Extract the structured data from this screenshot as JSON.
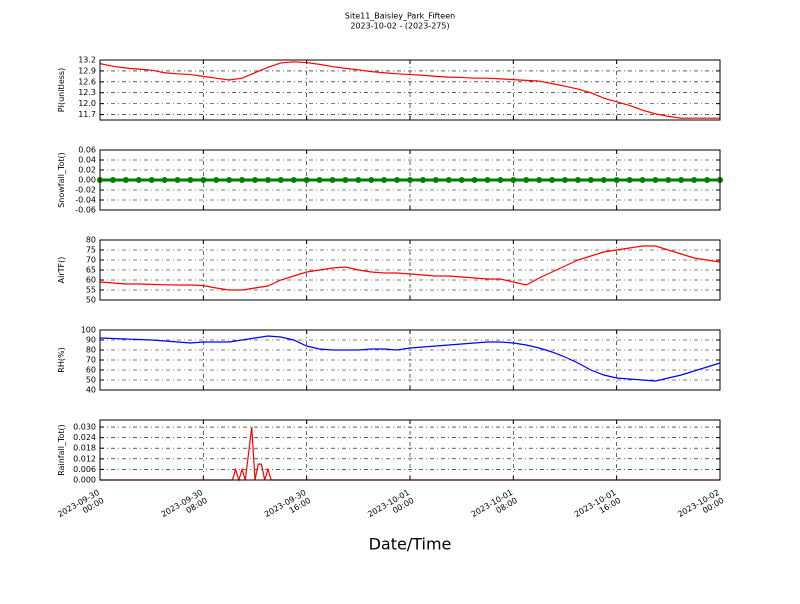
{
  "title": "Site11_Baisley_Park_Fifteen",
  "subtitle": "2023-10-02 - (2023-275)",
  "xlabel": "Date/Time",
  "chart_data": [
    {
      "type": "line",
      "ylabel": "PI(unitless)",
      "color": "#ff0000",
      "grid": true,
      "xlim": [
        "2023-09-30 00:00",
        "2023-10-02 00:00"
      ],
      "ylim": [
        11.55,
        13.2
      ],
      "yticks": [
        11.7,
        {
          "value": 12,
          "label": "12.0"
        },
        12.3,
        12.6,
        12.9,
        13.2
      ],
      "x": [
        "2023-09-30 00:00",
        "2023-09-30 01:00",
        "2023-09-30 02:00",
        "2023-09-30 03:00",
        "2023-09-30 04:00",
        "2023-09-30 05:00",
        "2023-09-30 06:00",
        "2023-09-30 07:00",
        "2023-09-30 08:00",
        "2023-09-30 09:00",
        "2023-09-30 10:00",
        "2023-09-30 11:00",
        "2023-09-30 12:00",
        "2023-09-30 13:00",
        "2023-09-30 14:00",
        "2023-09-30 15:00",
        "2023-09-30 16:00",
        "2023-09-30 17:00",
        "2023-09-30 18:00",
        "2023-09-30 19:00",
        "2023-09-30 20:00",
        "2023-09-30 21:00",
        "2023-09-30 22:00",
        "2023-09-30 23:00",
        "2023-10-01 00:00",
        "2023-10-01 01:00",
        "2023-10-01 02:00",
        "2023-10-01 03:00",
        "2023-10-01 04:00",
        "2023-10-01 05:00",
        "2023-10-01 06:00",
        "2023-10-01 07:00",
        "2023-10-01 08:00",
        "2023-10-01 09:00",
        "2023-10-01 10:00",
        "2023-10-01 11:00",
        "2023-10-01 12:00",
        "2023-10-01 13:00",
        "2023-10-01 14:00",
        "2023-10-01 15:00",
        "2023-10-01 16:00",
        "2023-10-01 17:00",
        "2023-10-01 18:00",
        "2023-10-01 19:00",
        "2023-10-01 20:00",
        "2023-10-01 21:00",
        "2023-10-01 22:00",
        "2023-10-01 23:00",
        "2023-10-02 00:00"
      ],
      "values": [
        13.1,
        13.03,
        12.98,
        12.95,
        12.92,
        12.85,
        12.82,
        12.8,
        12.75,
        12.7,
        12.65,
        12.7,
        12.85,
        13.0,
        13.12,
        13.15,
        13.13,
        13.08,
        13.02,
        12.97,
        12.93,
        12.88,
        12.85,
        12.82,
        12.8,
        12.78,
        12.75,
        12.73,
        12.72,
        12.7,
        12.7,
        12.68,
        12.66,
        12.64,
        12.62,
        12.55,
        12.48,
        12.4,
        12.3,
        12.15,
        12.05,
        11.95,
        11.82,
        11.72,
        11.65,
        11.6,
        11.6,
        11.6,
        11.6
      ]
    },
    {
      "type": "line",
      "ylabel": "Snowfall_Tot()",
      "color": "#008000",
      "grid": true,
      "markers": true,
      "xlim": [
        "2023-09-30 00:00",
        "2023-10-02 00:00"
      ],
      "ylim": [
        -0.06,
        0.06
      ],
      "yticks": [
        -0.06,
        -0.04,
        -0.02,
        {
          "value": 0,
          "label": "0.00"
        },
        0.02,
        0.04,
        0.06
      ],
      "x": [
        "2023-09-30 00:00",
        "2023-09-30 01:00",
        "2023-09-30 02:00",
        "2023-09-30 03:00",
        "2023-09-30 04:00",
        "2023-09-30 05:00",
        "2023-09-30 06:00",
        "2023-09-30 07:00",
        "2023-09-30 08:00",
        "2023-09-30 09:00",
        "2023-09-30 10:00",
        "2023-09-30 11:00",
        "2023-09-30 12:00",
        "2023-09-30 13:00",
        "2023-09-30 14:00",
        "2023-09-30 15:00",
        "2023-09-30 16:00",
        "2023-09-30 17:00",
        "2023-09-30 18:00",
        "2023-09-30 19:00",
        "2023-09-30 20:00",
        "2023-09-30 21:00",
        "2023-09-30 22:00",
        "2023-09-30 23:00",
        "2023-10-01 00:00",
        "2023-10-01 01:00",
        "2023-10-01 02:00",
        "2023-10-01 03:00",
        "2023-10-01 04:00",
        "2023-10-01 05:00",
        "2023-10-01 06:00",
        "2023-10-01 07:00",
        "2023-10-01 08:00",
        "2023-10-01 09:00",
        "2023-10-01 10:00",
        "2023-10-01 11:00",
        "2023-10-01 12:00",
        "2023-10-01 13:00",
        "2023-10-01 14:00",
        "2023-10-01 15:00",
        "2023-10-01 16:00",
        "2023-10-01 17:00",
        "2023-10-01 18:00",
        "2023-10-01 19:00",
        "2023-10-01 20:00",
        "2023-10-01 21:00",
        "2023-10-01 22:00",
        "2023-10-01 23:00",
        "2023-10-02 00:00"
      ],
      "values": [
        0,
        0,
        0,
        0,
        0,
        0,
        0,
        0,
        0,
        0,
        0,
        0,
        0,
        0,
        0,
        0,
        0,
        0,
        0,
        0,
        0,
        0,
        0,
        0,
        0,
        0,
        0,
        0,
        0,
        0,
        0,
        0,
        0,
        0,
        0,
        0,
        0,
        0,
        0,
        0,
        0,
        0,
        0,
        0,
        0,
        0,
        0,
        0,
        0
      ]
    },
    {
      "type": "line",
      "ylabel": "AirTF()",
      "color": "#ff0000",
      "grid": true,
      "xlim": [
        "2023-09-30 00:00",
        "2023-10-02 00:00"
      ],
      "ylim": [
        50,
        80
      ],
      "yticks": [
        50,
        55,
        60,
        65,
        70,
        75,
        80
      ],
      "x": [
        "2023-09-30 00:00",
        "2023-09-30 01:00",
        "2023-09-30 02:00",
        "2023-09-30 03:00",
        "2023-09-30 04:00",
        "2023-09-30 05:00",
        "2023-09-30 06:00",
        "2023-09-30 07:00",
        "2023-09-30 08:00",
        "2023-09-30 09:00",
        "2023-09-30 10:00",
        "2023-09-30 11:00",
        "2023-09-30 12:00",
        "2023-09-30 13:00",
        "2023-09-30 14:00",
        "2023-09-30 15:00",
        "2023-09-30 16:00",
        "2023-09-30 17:00",
        "2023-09-30 18:00",
        "2023-09-30 19:00",
        "2023-09-30 20:00",
        "2023-09-30 21:00",
        "2023-09-30 22:00",
        "2023-09-30 23:00",
        "2023-10-01 00:00",
        "2023-10-01 01:00",
        "2023-10-01 02:00",
        "2023-10-01 03:00",
        "2023-10-01 04:00",
        "2023-10-01 05:00",
        "2023-10-01 06:00",
        "2023-10-01 07:00",
        "2023-10-01 08:00",
        "2023-10-01 09:00",
        "2023-10-01 10:00",
        "2023-10-01 11:00",
        "2023-10-01 12:00",
        "2023-10-01 13:00",
        "2023-10-01 14:00",
        "2023-10-01 15:00",
        "2023-10-01 16:00",
        "2023-10-01 17:00",
        "2023-10-01 18:00",
        "2023-10-01 19:00",
        "2023-10-01 20:00",
        "2023-10-01 21:00",
        "2023-10-01 22:00",
        "2023-10-01 23:00",
        "2023-10-02 00:00"
      ],
      "values": [
        59,
        58.5,
        58,
        58,
        57.8,
        57.6,
        57.5,
        57.5,
        57.2,
        56,
        55,
        55,
        56,
        57,
        60,
        62,
        64,
        65,
        66,
        66.5,
        65,
        64,
        63.5,
        63.5,
        63,
        62.5,
        62,
        62,
        61.5,
        61,
        60.5,
        60.5,
        59,
        57.5,
        61,
        64,
        67,
        70,
        72,
        74,
        75,
        76,
        77,
        77,
        75,
        73,
        71,
        70,
        69
      ]
    },
    {
      "type": "line",
      "ylabel": "RH(%)",
      "color": "#0000ff",
      "grid": true,
      "xlim": [
        "2023-09-30 00:00",
        "2023-10-02 00:00"
      ],
      "ylim": [
        40,
        100
      ],
      "yticks": [
        40,
        50,
        60,
        70,
        80,
        90,
        100
      ],
      "x": [
        "2023-09-30 00:00",
        "2023-09-30 01:00",
        "2023-09-30 02:00",
        "2023-09-30 03:00",
        "2023-09-30 04:00",
        "2023-09-30 05:00",
        "2023-09-30 06:00",
        "2023-09-30 07:00",
        "2023-09-30 08:00",
        "2023-09-30 09:00",
        "2023-09-30 10:00",
        "2023-09-30 11:00",
        "2023-09-30 12:00",
        "2023-09-30 13:00",
        "2023-09-30 14:00",
        "2023-09-30 15:00",
        "2023-09-30 16:00",
        "2023-09-30 17:00",
        "2023-09-30 18:00",
        "2023-09-30 19:00",
        "2023-09-30 20:00",
        "2023-09-30 21:00",
        "2023-09-30 22:00",
        "2023-09-30 23:00",
        "2023-10-01 00:00",
        "2023-10-01 01:00",
        "2023-10-01 02:00",
        "2023-10-01 03:00",
        "2023-10-01 04:00",
        "2023-10-01 05:00",
        "2023-10-01 06:00",
        "2023-10-01 07:00",
        "2023-10-01 08:00",
        "2023-10-01 09:00",
        "2023-10-01 10:00",
        "2023-10-01 11:00",
        "2023-10-01 12:00",
        "2023-10-01 13:00",
        "2023-10-01 14:00",
        "2023-10-01 15:00",
        "2023-10-01 16:00",
        "2023-10-01 17:00",
        "2023-10-01 18:00",
        "2023-10-01 19:00",
        "2023-10-01 20:00",
        "2023-10-01 21:00",
        "2023-10-01 22:00",
        "2023-10-01 23:00",
        "2023-10-02 00:00"
      ],
      "values": [
        92,
        91.5,
        91,
        90.5,
        90,
        89,
        88,
        87,
        88,
        88,
        88,
        90,
        92,
        94,
        93,
        90,
        84,
        81,
        80,
        80,
        80,
        81,
        81,
        80,
        82,
        83,
        84,
        85,
        86,
        87,
        88,
        88,
        87,
        85,
        82,
        78,
        73,
        67,
        60,
        55,
        52,
        51,
        50,
        49,
        52,
        55,
        59,
        63,
        67
      ]
    },
    {
      "type": "line",
      "ylabel": "Rainfall_Tot()",
      "color": "#ff0000",
      "grid": true,
      "xlim": [
        "2023-09-30 00:00",
        "2023-10-02 00:00"
      ],
      "ylim": [
        0,
        0.034
      ],
      "yticks": [
        {
          "value": 0,
          "label": "0.000"
        },
        {
          "value": 0.006,
          "label": "0.006"
        },
        {
          "value": 0.012,
          "label": "0.012"
        },
        {
          "value": 0.018,
          "label": "0.018"
        },
        {
          "value": 0.024,
          "label": "0.024"
        },
        {
          "value": 0.03,
          "label": "0.030"
        }
      ],
      "xticks": [
        {
          "value": "2023-09-30 00:00",
          "label": "2023-09-30\n00:00"
        },
        {
          "value": "2023-09-30 08:00",
          "label": "2023-09-30\n08:00"
        },
        {
          "value": "2023-09-30 16:00",
          "label": "2023-09-30\n16:00"
        },
        {
          "value": "2023-10-01 00:00",
          "label": "2023-10-01\n00:00"
        },
        {
          "value": "2023-10-01 08:00",
          "label": "2023-10-01\n08:00"
        },
        {
          "value": "2023-10-01 16:00",
          "label": "2023-10-01\n16:00"
        },
        {
          "value": "2023-10-02 00:00",
          "label": "2023-10-02\n00:00"
        }
      ],
      "x": [
        "2023-09-30 00:00",
        "2023-09-30 10:00",
        "2023-09-30 10:15",
        "2023-09-30 10:30",
        "2023-09-30 10:45",
        "2023-09-30 11:00",
        "2023-09-30 11:15",
        "2023-09-30 11:30",
        "2023-09-30 11:45",
        "2023-09-30 12:00",
        "2023-09-30 12:15",
        "2023-09-30 12:30",
        "2023-09-30 12:45",
        "2023-09-30 13:00",
        "2023-09-30 13:15",
        "2023-10-02 00:00"
      ],
      "values": [
        0,
        0,
        0,
        0.006,
        0,
        0.006,
        0,
        0.015,
        0.03,
        0,
        0.009,
        0.009,
        0,
        0.006,
        0,
        0
      ]
    }
  ]
}
